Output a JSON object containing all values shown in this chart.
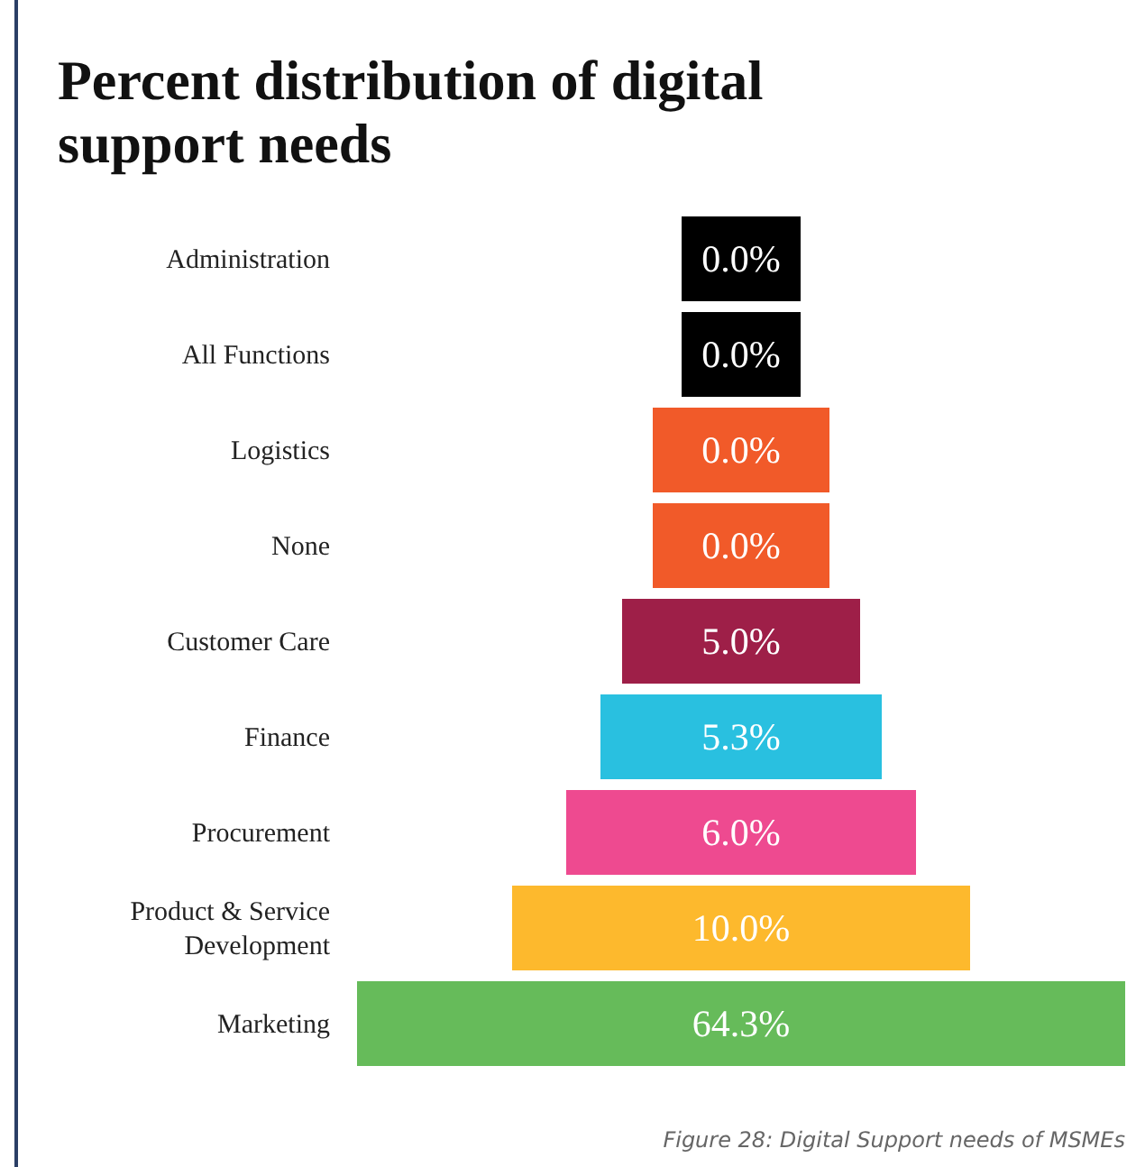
{
  "chart_data": {
    "type": "other",
    "title": "Percent distribution of digital support needs",
    "categories": [
      "Administration",
      "All Functions",
      "Logistics",
      "None",
      "Customer Care",
      "Finance",
      "Procurement",
      "Product & Service Development",
      "Marketing"
    ],
    "values": [
      0.0,
      0.0,
      0.0,
      0.0,
      5.0,
      5.3,
      6.0,
      10.0,
      64.3
    ],
    "value_labels": [
      "0.0%",
      "0.0%",
      "0.0%",
      "0.0%",
      "5.0%",
      "5.3%",
      "6.0%",
      "10.0%",
      "64.3%"
    ],
    "colors": [
      "#000000",
      "#000000",
      "#f15a29",
      "#f15a29",
      "#9e1f48",
      "#29c0e0",
      "#ee4a90",
      "#fdb92d",
      "#66bb5a"
    ],
    "annotations": [
      "Figure 28: Digital Support needs of MSMEs"
    ]
  }
}
